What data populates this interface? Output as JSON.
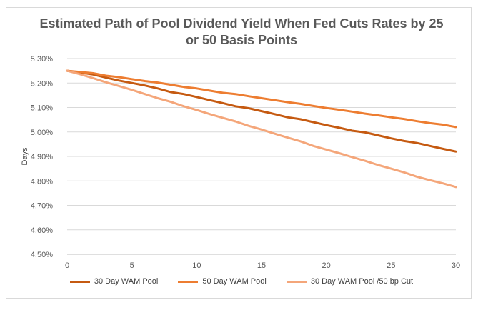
{
  "chart_data": {
    "type": "line",
    "title_lines": [
      "Estimated Path of Pool Dividend Yield When Fed Cuts Rates by 25",
      "or 50 Basis Points"
    ],
    "ylabel": "Days",
    "xlabel": "",
    "xlim": [
      0,
      30
    ],
    "ylim": [
      4.5,
      5.3
    ],
    "x_ticks": [
      "0",
      "5",
      "10",
      "15",
      "20",
      "25",
      "30"
    ],
    "y_ticks": [
      "5.30%",
      "5.20%",
      "5.10%",
      "5.00%",
      "4.90%",
      "4.80%",
      "4.70%",
      "4.60%",
      "4.50%"
    ],
    "grid": "horizontal",
    "legend_position": "bottom",
    "x": [
      0,
      1,
      2,
      3,
      4,
      5,
      6,
      7,
      8,
      9,
      10,
      11,
      12,
      13,
      14,
      15,
      16,
      17,
      18,
      19,
      20,
      21,
      22,
      23,
      24,
      25,
      26,
      27,
      28,
      29,
      30
    ],
    "series": [
      {
        "name": "30 Day WAM Pool",
        "color": "#c55a11",
        "values": [
          5.25,
          5.243,
          5.235,
          5.222,
          5.21,
          5.2,
          5.19,
          5.178,
          5.163,
          5.155,
          5.143,
          5.13,
          5.118,
          5.105,
          5.097,
          5.085,
          5.073,
          5.06,
          5.052,
          5.04,
          5.028,
          5.017,
          5.005,
          4.998,
          4.986,
          4.974,
          4.963,
          4.955,
          4.943,
          4.931,
          4.92
        ]
      },
      {
        "name": "50 Day WAM Pool",
        "color": "#ed7d31",
        "values": [
          5.25,
          5.245,
          5.24,
          5.23,
          5.224,
          5.216,
          5.208,
          5.202,
          5.193,
          5.184,
          5.178,
          5.169,
          5.16,
          5.155,
          5.146,
          5.138,
          5.13,
          5.122,
          5.115,
          5.106,
          5.098,
          5.091,
          5.083,
          5.075,
          5.068,
          5.06,
          5.053,
          5.044,
          5.036,
          5.03,
          5.02
        ]
      },
      {
        "name": "30 Day WAM Pool /50 bp Cut",
        "color": "#f4a67a",
        "values": [
          5.25,
          5.236,
          5.22,
          5.203,
          5.188,
          5.172,
          5.155,
          5.138,
          5.123,
          5.105,
          5.09,
          5.073,
          5.058,
          5.043,
          5.025,
          5.01,
          4.993,
          4.977,
          4.962,
          4.943,
          4.928,
          4.913,
          4.897,
          4.882,
          4.865,
          4.85,
          4.835,
          4.817,
          4.803,
          4.79,
          4.775
        ]
      }
    ]
  }
}
